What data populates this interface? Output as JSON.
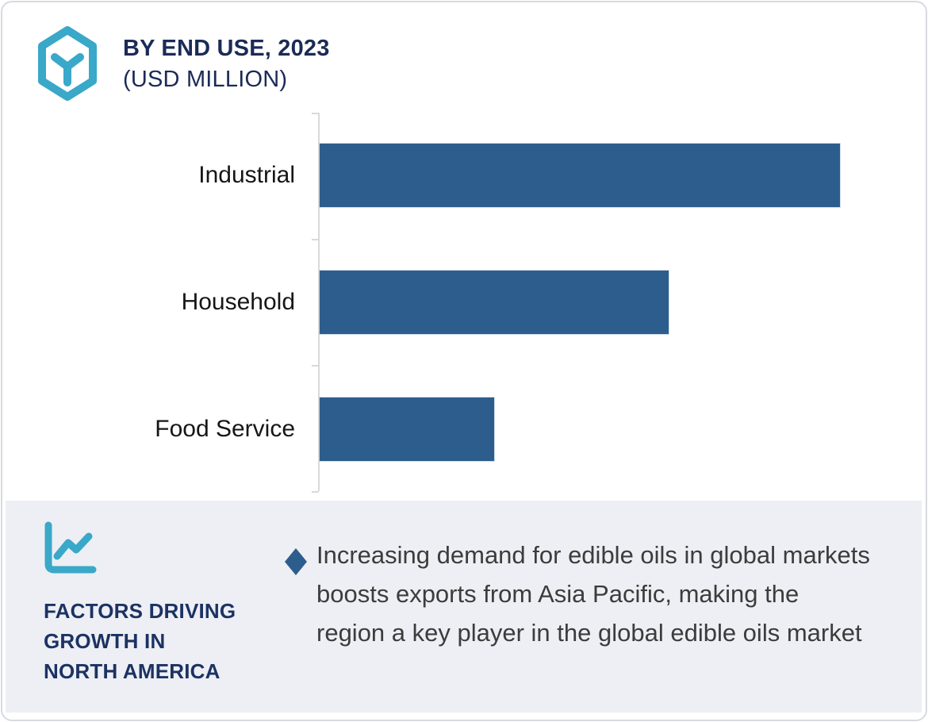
{
  "header": {
    "title_line1": "BY END USE, 2023",
    "title_line2": "(USD MILLION)"
  },
  "chart_data": {
    "type": "bar",
    "orientation": "horizontal",
    "title": "BY END USE, 2023 (USD MILLION)",
    "units": "USD Million",
    "categories": [
      "Industrial",
      "Household",
      "Food Service"
    ],
    "values_relative": [
      1.0,
      0.67,
      0.335
    ],
    "value_axis_labels_shown": false,
    "data_labels_shown": false,
    "gridlines": false,
    "legend": "none",
    "bar_color": "#2d5d8c",
    "axis_color": "#d9d9d9"
  },
  "factors": {
    "heading_lines": [
      "FACTORS DRIVING",
      "GROWTH IN",
      "NORTH AMERICA"
    ],
    "bullets": [
      {
        "marker": "diamond",
        "text": "Increasing demand for edible oils in global markets boosts exports from Asia Pacific, making the region a key player in the global edible oils market"
      }
    ]
  },
  "icons": {
    "brand": "hexagon-y-icon",
    "factors": "line-chart-icon"
  },
  "colors": {
    "accent_teal": "#3aa8c8",
    "title_navy": "#1b2b57",
    "factors_navy": "#1c3263",
    "bar_blue": "#2d5d8c",
    "panel_bg": "#edeff4",
    "body_text": "#3c3c3c",
    "card_border": "#d8dae2"
  }
}
